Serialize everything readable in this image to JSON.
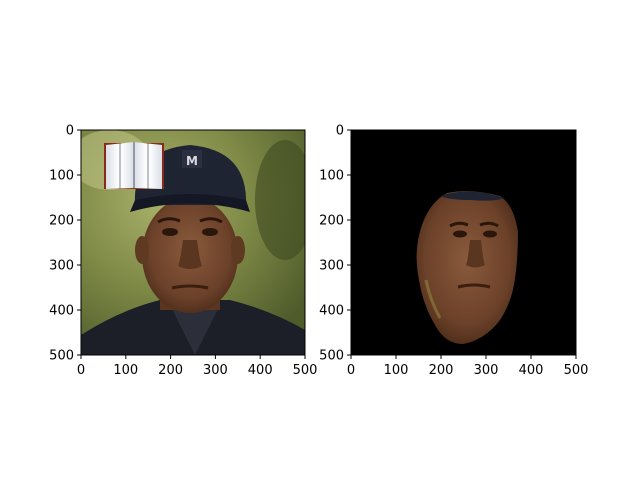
{
  "chart_data": [
    {
      "type": "image",
      "title": "",
      "xlabel": "",
      "ylabel": "",
      "xlim": [
        0,
        500
      ],
      "ylim": [
        500,
        0
      ],
      "xticks": [
        0,
        100,
        200,
        300,
        400,
        500
      ],
      "yticks": [
        0,
        100,
        200,
        300,
        400,
        500
      ],
      "content": "portrait",
      "background_color": "#6f7f3c",
      "overlay_icon": "open-book-icon"
    },
    {
      "type": "image",
      "title": "",
      "xlabel": "",
      "ylabel": "",
      "xlim": [
        0,
        500
      ],
      "ylim": [
        500,
        0
      ],
      "xticks": [
        0,
        100,
        200,
        300,
        400,
        500
      ],
      "yticks": [
        0,
        100,
        200,
        300,
        400,
        500
      ],
      "content": "face-mask",
      "background_color": "#000000"
    }
  ]
}
